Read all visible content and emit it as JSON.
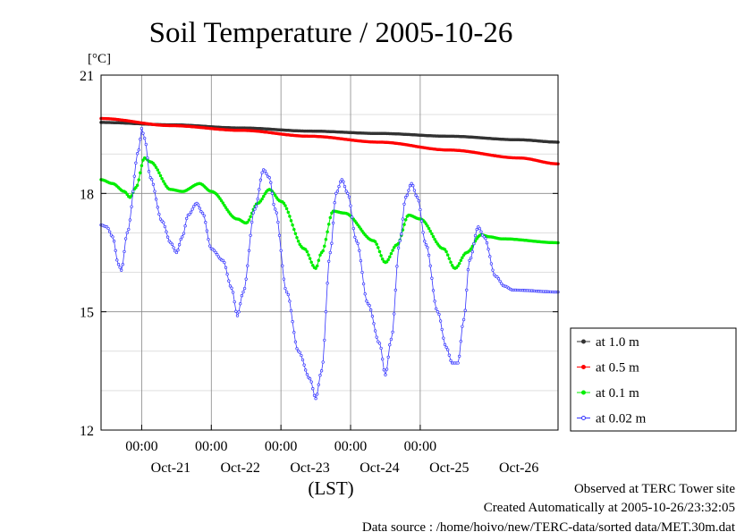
{
  "chart_data": {
    "type": "line",
    "title": "Soil Temperature / 2005-10-26",
    "y_unit_label": "[°C]",
    "xlabel": "(LST)",
    "x_range": [
      "2005-10-20T10:00",
      "2005-10-26T23:30"
    ],
    "ylim": [
      12,
      21
    ],
    "y_ticks": [
      12,
      15,
      18,
      21
    ],
    "x_time_ticks": [
      "00:00",
      "00:00",
      "00:00",
      "00:00",
      "00:00"
    ],
    "x_date_labels": [
      "Oct-21",
      "Oct-22",
      "Oct-23",
      "Oct-24",
      "Oct-25",
      "Oct-26"
    ],
    "grid": true,
    "legend_position": "right-bottom",
    "series": [
      {
        "name": "at 1.0 m",
        "color": "#333333",
        "points": [
          [
            "2005-10-20T10:00",
            19.8
          ],
          [
            "2005-10-21T10:00",
            19.74
          ],
          [
            "2005-10-22T10:00",
            19.66
          ],
          [
            "2005-10-23T10:00",
            19.58
          ],
          [
            "2005-10-24T10:00",
            19.52
          ],
          [
            "2005-10-25T10:00",
            19.45
          ],
          [
            "2005-10-26T10:00",
            19.36
          ],
          [
            "2005-10-26T23:30",
            19.3
          ]
        ]
      },
      {
        "name": "at 0.5 m",
        "color": "#ff0000",
        "points": [
          [
            "2005-10-20T10:00",
            19.9
          ],
          [
            "2005-10-21T10:00",
            19.72
          ],
          [
            "2005-10-22T10:00",
            19.6
          ],
          [
            "2005-10-23T10:00",
            19.45
          ],
          [
            "2005-10-24T10:00",
            19.3
          ],
          [
            "2005-10-25T10:00",
            19.1
          ],
          [
            "2005-10-26T10:00",
            18.9
          ],
          [
            "2005-10-26T23:30",
            18.75
          ]
        ]
      },
      {
        "name": "at 0.1 m",
        "color": "#00ee00",
        "points": [
          [
            "2005-10-20T10:00",
            18.35
          ],
          [
            "2005-10-20T14:00",
            18.25
          ],
          [
            "2005-10-20T18:00",
            18.05
          ],
          [
            "2005-10-20T20:00",
            17.9
          ],
          [
            "2005-10-20T22:00",
            18.15
          ],
          [
            "2005-10-21T01:00",
            18.9
          ],
          [
            "2005-10-21T03:00",
            18.8
          ],
          [
            "2005-10-21T10:00",
            18.1
          ],
          [
            "2005-10-21T14:00",
            18.05
          ],
          [
            "2005-10-21T20:00",
            18.25
          ],
          [
            "2005-10-22T00:00",
            18.05
          ],
          [
            "2005-10-22T09:00",
            17.35
          ],
          [
            "2005-10-22T12:00",
            17.25
          ],
          [
            "2005-10-22T16:00",
            17.75
          ],
          [
            "2005-10-22T20:00",
            18.1
          ],
          [
            "2005-10-23T00:00",
            17.8
          ],
          [
            "2005-10-23T08:00",
            16.6
          ],
          [
            "2005-10-23T12:00",
            16.1
          ],
          [
            "2005-10-23T14:00",
            16.5
          ],
          [
            "2005-10-23T18:00",
            17.55
          ],
          [
            "2005-10-23T22:00",
            17.5
          ],
          [
            "2005-10-24T08:00",
            16.8
          ],
          [
            "2005-10-24T12:00",
            16.25
          ],
          [
            "2005-10-24T16:00",
            16.7
          ],
          [
            "2005-10-24T20:00",
            17.45
          ],
          [
            "2005-10-25T00:00",
            17.35
          ],
          [
            "2005-10-25T08:00",
            16.6
          ],
          [
            "2005-10-25T12:00",
            16.1
          ],
          [
            "2005-10-25T16:00",
            16.5
          ],
          [
            "2005-10-25T21:00",
            16.95
          ],
          [
            "2005-10-26T00:00",
            16.9
          ],
          [
            "2005-10-26T04:00",
            16.85
          ],
          [
            "2005-10-26T23:30",
            16.75
          ]
        ]
      },
      {
        "name": "at 0.02 m",
        "color": "#3333ff",
        "points": [
          [
            "2005-10-20T10:00",
            17.2
          ],
          [
            "2005-10-20T12:00",
            17.15
          ],
          [
            "2005-10-20T14:00",
            16.9
          ],
          [
            "2005-10-20T16:00",
            16.2
          ],
          [
            "2005-10-20T17:00",
            16.05
          ],
          [
            "2005-10-20T19:00",
            17.0
          ],
          [
            "2005-10-20T23:00",
            19.1
          ],
          [
            "2005-10-21T00:00",
            19.65
          ],
          [
            "2005-10-21T01:00",
            19.4
          ],
          [
            "2005-10-21T03:00",
            18.4
          ],
          [
            "2005-10-21T07:00",
            17.3
          ],
          [
            "2005-10-21T10:00",
            16.75
          ],
          [
            "2005-10-21T12:00",
            16.5
          ],
          [
            "2005-10-21T14:00",
            16.9
          ],
          [
            "2005-10-21T16:00",
            17.45
          ],
          [
            "2005-10-21T19:00",
            17.75
          ],
          [
            "2005-10-21T21:00",
            17.5
          ],
          [
            "2005-10-22T00:00",
            16.6
          ],
          [
            "2005-10-22T04:00",
            16.3
          ],
          [
            "2005-10-22T07:00",
            15.6
          ],
          [
            "2005-10-22T09:00",
            14.9
          ],
          [
            "2005-10-22T11:00",
            15.5
          ],
          [
            "2005-10-22T15:00",
            17.6
          ],
          [
            "2005-10-22T18:00",
            18.6
          ],
          [
            "2005-10-22T20:00",
            18.4
          ],
          [
            "2005-10-22T22:00",
            17.6
          ],
          [
            "2005-10-23T02:00",
            15.5
          ],
          [
            "2005-10-23T06:00",
            14.0
          ],
          [
            "2005-10-23T10:00",
            13.3
          ],
          [
            "2005-10-23T12:00",
            12.8
          ],
          [
            "2005-10-23T14:00",
            13.5
          ],
          [
            "2005-10-23T17:00",
            16.5
          ],
          [
            "2005-10-23T19:00",
            18.0
          ],
          [
            "2005-10-23T21:00",
            18.35
          ],
          [
            "2005-10-23T23:00",
            18.0
          ],
          [
            "2005-10-24T02:00",
            16.8
          ],
          [
            "2005-10-24T06:00",
            15.2
          ],
          [
            "2005-10-24T10:00",
            14.2
          ],
          [
            "2005-10-24T12:00",
            13.4
          ],
          [
            "2005-10-24T14:00",
            14.3
          ],
          [
            "2005-10-24T17:00",
            16.8
          ],
          [
            "2005-10-24T19:00",
            17.9
          ],
          [
            "2005-10-24T21:00",
            18.25
          ],
          [
            "2005-10-24T23:00",
            17.9
          ],
          [
            "2005-10-25T02:00",
            16.7
          ],
          [
            "2005-10-25T06:00",
            15.0
          ],
          [
            "2005-10-25T09:00",
            14.1
          ],
          [
            "2005-10-25T11:00",
            13.7
          ],
          [
            "2005-10-25T13:00",
            13.7
          ],
          [
            "2005-10-25T15:00",
            14.8
          ],
          [
            "2005-10-25T17:00",
            16.3
          ],
          [
            "2005-10-25T20:00",
            17.15
          ],
          [
            "2005-10-25T22:00",
            16.9
          ],
          [
            "2005-10-26T02:00",
            15.9
          ],
          [
            "2005-10-26T05:00",
            15.65
          ],
          [
            "2005-10-26T08:00",
            15.55
          ],
          [
            "2005-10-26T23:30",
            15.5
          ]
        ]
      }
    ],
    "footer": [
      "Observed at TERC Tower site",
      "Created Automatically at 2005-10-26/23:32:05",
      "Data source : /home/hoivo/new/TERC-data/sorted  data/MET.30m.dat"
    ]
  }
}
